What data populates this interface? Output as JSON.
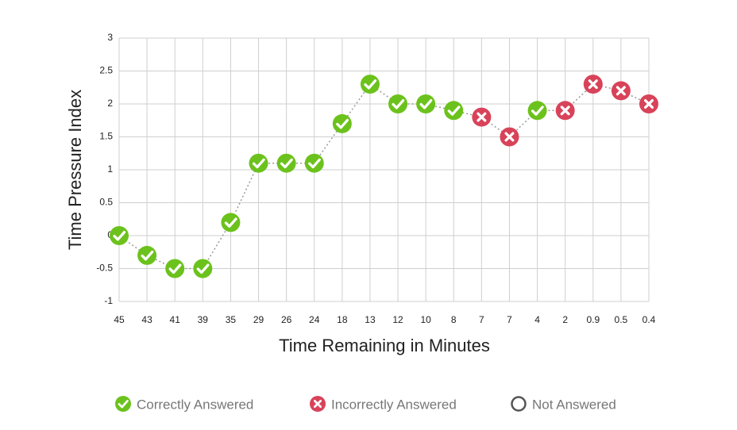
{
  "chart_data": {
    "type": "line",
    "x_label": "Time Remaining in Minutes",
    "y_label": "Time Pressure Index",
    "categories": [
      "45",
      "43",
      "41",
      "39",
      "35",
      "29",
      "26",
      "24",
      "18",
      "13",
      "12",
      "10",
      "8",
      "7",
      "7",
      "4",
      "2",
      "0.9",
      "0.5",
      "0.4"
    ],
    "series": [
      {
        "name": "Correctly Answered",
        "color": "#6cc21c",
        "marker": "check",
        "values": [
          0,
          -0.3,
          -0.5,
          -0.5,
          0.2,
          1.1,
          1.1,
          1.1,
          1.7,
          2.3,
          2.0,
          2.0,
          1.9,
          null,
          null,
          1.9,
          null,
          null,
          null,
          null
        ]
      },
      {
        "name": "Incorrectly Answered",
        "color": "#d8435a",
        "marker": "cross",
        "values": [
          null,
          null,
          null,
          null,
          null,
          null,
          null,
          null,
          null,
          null,
          null,
          null,
          null,
          1.8,
          1.5,
          null,
          1.9,
          2.3,
          2.2,
          2.0
        ]
      },
      {
        "name": "Not Answered",
        "color": "#555555",
        "marker": "ring",
        "values": [
          null,
          null,
          null,
          null,
          null,
          null,
          null,
          null,
          null,
          null,
          null,
          null,
          null,
          null,
          null,
          null,
          null,
          null,
          null,
          null
        ]
      }
    ],
    "ylim": [
      -1,
      3
    ],
    "yticks": [
      -1,
      -0.5,
      0,
      0.5,
      1,
      1.5,
      2,
      2.5,
      3
    ],
    "grid": true
  }
}
